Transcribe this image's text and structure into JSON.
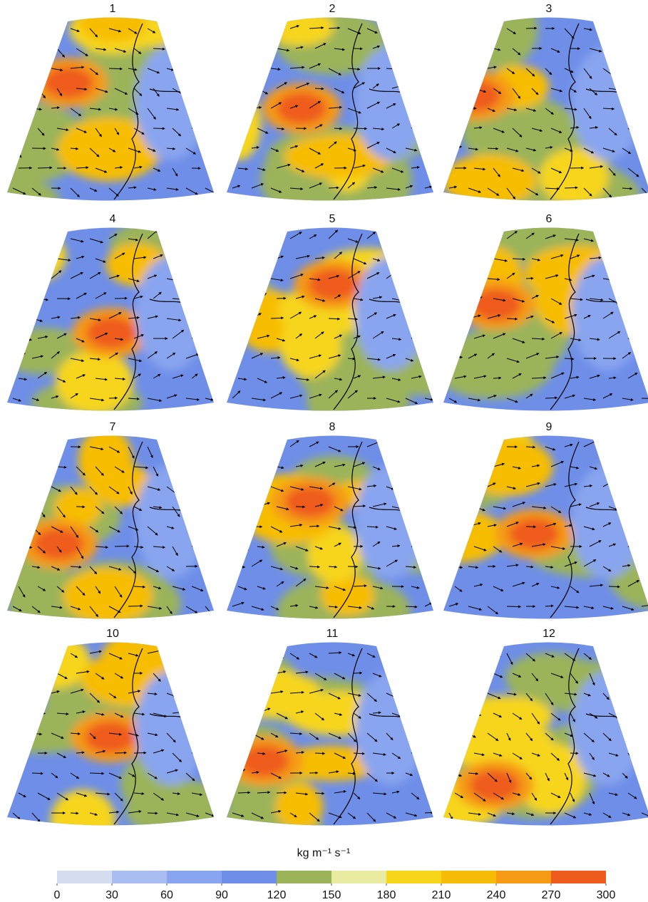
{
  "panels": [
    {
      "title": "1"
    },
    {
      "title": "2"
    },
    {
      "title": "3"
    },
    {
      "title": "4"
    },
    {
      "title": "5"
    },
    {
      "title": "6"
    },
    {
      "title": "7"
    },
    {
      "title": "8"
    },
    {
      "title": "9"
    },
    {
      "title": "10"
    },
    {
      "title": "11"
    },
    {
      "title": "12"
    }
  ],
  "colorbar": {
    "label": "kg m⁻¹ s⁻¹",
    "xlim": [
      0,
      300
    ],
    "ticks": [
      0,
      30,
      60,
      90,
      120,
      150,
      180,
      210,
      240,
      270,
      300
    ],
    "colors": [
      "#d4dcef",
      "#aabdf2",
      "#89a5ef",
      "#6e8ee8",
      "#9bb45a",
      "#e9eca0",
      "#f7d51b",
      "#f7bd06",
      "#f59a12",
      "#ef5b1d"
    ]
  }
}
